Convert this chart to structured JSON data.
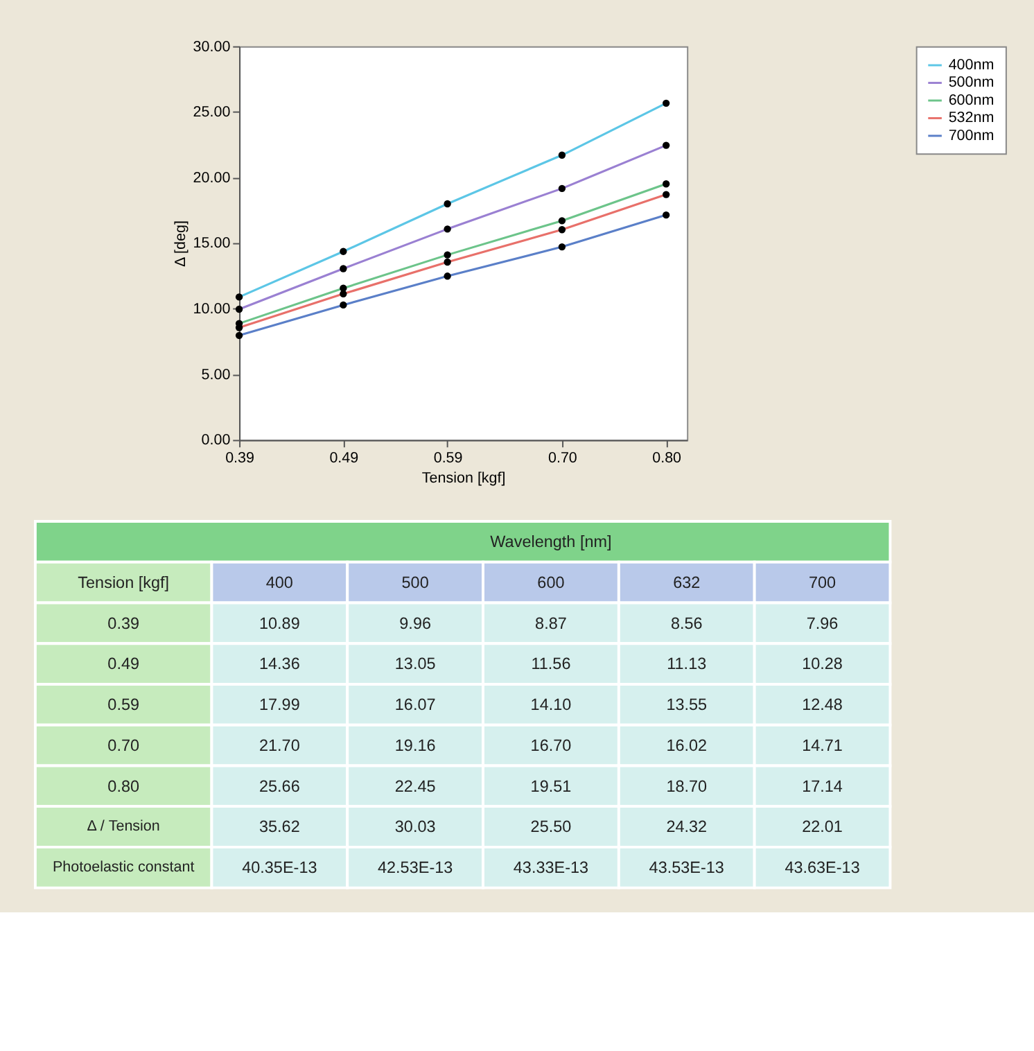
{
  "chart_data": [
    {
      "type": "line",
      "xlabel": "Tension [kgf]",
      "ylabel": "Δ  [deg]",
      "x": [
        0.39,
        0.49,
        0.59,
        0.7,
        0.8
      ],
      "series": [
        {
          "name": "400nm",
          "color": "#5cc6e6",
          "values": [
            10.89,
            14.36,
            17.99,
            21.7,
            25.66
          ]
        },
        {
          "name": "500nm",
          "color": "#9a80d2",
          "values": [
            9.96,
            13.05,
            16.07,
            19.16,
            22.45
          ]
        },
        {
          "name": "600nm",
          "color": "#6cc48a",
          "values": [
            8.87,
            11.56,
            14.1,
            16.7,
            19.51
          ]
        },
        {
          "name": "532nm",
          "color": "#e8706a",
          "values": [
            8.56,
            11.13,
            13.55,
            16.02,
            18.7
          ]
        },
        {
          "name": "700nm",
          "color": "#5a7fc8",
          "values": [
            7.96,
            10.28,
            12.48,
            14.71,
            17.14
          ]
        }
      ],
      "xlim": [
        0.39,
        0.82
      ],
      "xticks": [
        0.39,
        0.49,
        0.59,
        {
          "value": 0.7,
          "label": "0.70"
        },
        {
          "value": 0.8,
          "label": "0.80"
        }
      ],
      "ylim": [
        0,
        30
      ],
      "yticks": [
        {
          "value": 0,
          "label": "0.00"
        },
        {
          "value": 5,
          "label": "5.00"
        },
        {
          "value": 10,
          "label": "10.00"
        },
        {
          "value": 15,
          "label": "15.00"
        },
        {
          "value": 20,
          "label": "20.00"
        },
        {
          "value": 25,
          "label": "25.00"
        },
        {
          "value": 30,
          "label": "30.00"
        }
      ],
      "grid": false,
      "legend": "right",
      "marker": "circle",
      "line_style": "solid"
    },
    {
      "type": "other",
      "xlabel": "Wavelength [nm]",
      "ylabel": "Tension [kgf]",
      "categories": [
        "400",
        "500",
        "600",
        "632",
        "700"
      ],
      "y_categories": [
        "0.39",
        "0.49",
        "0.59",
        "0.70",
        "0.80",
        "Δ / Tension",
        "Photoelastic constant"
      ],
      "cell_labels": [
        [
          "10.89",
          "9.96",
          "8.87",
          "8.56",
          "7.96"
        ],
        [
          "14.36",
          "13.05",
          "11.56",
          "11.13",
          "10.28"
        ],
        [
          "17.99",
          "16.07",
          "14.10",
          "13.55",
          "12.48"
        ],
        [
          "21.70",
          "19.16",
          "16.70",
          "16.02",
          "14.71"
        ],
        [
          "25.66",
          "22.45",
          "19.51",
          "18.70",
          "17.14"
        ],
        [
          "35.62",
          "30.03",
          "25.50",
          "24.32",
          "22.01"
        ],
        [
          "40.35E-13",
          "42.53E-13",
          "43.33E-13",
          "43.53E-13",
          "43.63E-13"
        ]
      ]
    }
  ]
}
